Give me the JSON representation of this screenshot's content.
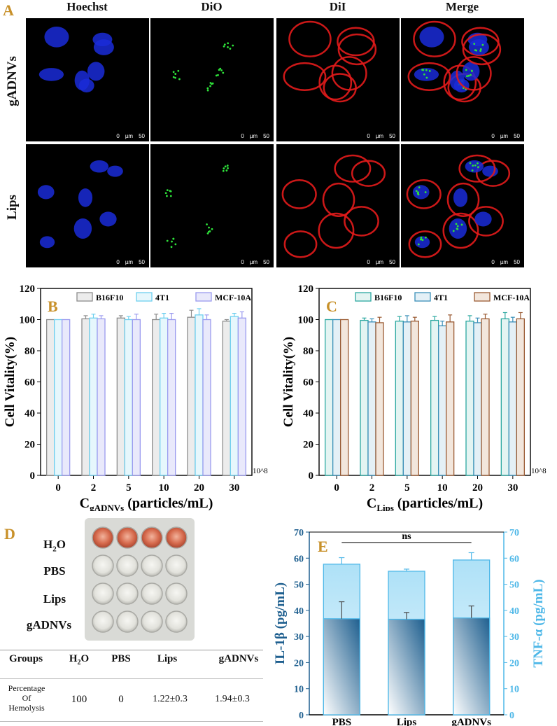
{
  "panel_a": {
    "letter": "A",
    "columns": [
      "Hoechst",
      "DiO",
      "DiI",
      "Merge"
    ],
    "rows": [
      "gADNVs",
      "Lips"
    ],
    "scale_bar": {
      "zero": "0",
      "unit": "µm",
      "length": "50"
    }
  },
  "chart_data": [
    {
      "panel": "B",
      "type": "bar",
      "categories": [
        "0",
        "2",
        "5",
        "10",
        "20",
        "30"
      ],
      "series": [
        {
          "name": "B16F10",
          "values": [
            100,
            100.5,
            101,
            100,
            101.5,
            99
          ],
          "errors": [
            0,
            2,
            1.5,
            3.5,
            4.5,
            1
          ]
        },
        {
          "name": "4T1",
          "values": [
            100,
            101,
            100,
            101,
            103,
            102
          ],
          "errors": [
            0,
            2.5,
            2,
            3,
            4,
            2
          ]
        },
        {
          "name": "MCF-10A",
          "values": [
            100,
            100.5,
            100,
            100,
            100,
            101
          ],
          "errors": [
            0,
            2,
            3.5,
            4,
            3,
            4
          ]
        }
      ],
      "xlabel_main": "C",
      "xlabel_sub": "gADNVs",
      "xlabel_tail": " (particles/mL)",
      "x_multiplier": "10^8",
      "ylabel": "Cell Vitality(%)",
      "ylim": [
        0,
        120
      ],
      "yticks": [
        0,
        20,
        40,
        60,
        80,
        100,
        120
      ],
      "colors": [
        "#8c8c8c",
        "#6fd0ef",
        "#9b9bef"
      ],
      "fills": [
        "#ececec",
        "#e6f7fc",
        "#e9e9fb"
      ]
    },
    {
      "panel": "C",
      "type": "bar",
      "categories": [
        "0",
        "2",
        "5",
        "10",
        "20",
        "30"
      ],
      "series": [
        {
          "name": "B16F10",
          "values": [
            100,
            99.5,
            99,
            99.5,
            99,
            100.5
          ],
          "errors": [
            0,
            1.5,
            3,
            2.5,
            3.5,
            4
          ]
        },
        {
          "name": "4T1",
          "values": [
            100,
            98.5,
            98.5,
            96,
            98,
            98.5
          ],
          "errors": [
            0,
            2,
            4,
            3,
            3,
            3
          ]
        },
        {
          "name": "MCF-10A",
          "values": [
            100,
            98,
            99,
            98.5,
            100.5,
            100.5
          ],
          "errors": [
            0,
            3.5,
            2.5,
            4.5,
            3,
            4
          ]
        }
      ],
      "xlabel_main": "C",
      "xlabel_sub": "Lips",
      "xlabel_tail": " (particles/mL)",
      "x_multiplier": "10^8",
      "ylabel": "Cell Vitality(%)",
      "ylim": [
        0,
        120
      ],
      "yticks": [
        0,
        20,
        40,
        60,
        80,
        100,
        120
      ],
      "colors": [
        "#2ba8a0",
        "#3a8fb8",
        "#9a5a32"
      ],
      "fills": [
        "#e3f4f2",
        "#e4f0f6",
        "#f2e6dc"
      ]
    },
    {
      "panel": "E",
      "type": "bar",
      "categories": [
        "PBS",
        "Lips",
        "gADNVs"
      ],
      "series": [
        {
          "name": "TNF-α",
          "values": [
            57.7,
            55,
            59.3
          ],
          "errors": [
            2.5,
            0.8,
            2.8
          ]
        },
        {
          "name": "IL-1β",
          "values": [
            36.8,
            36.6,
            37.1
          ],
          "errors": [
            6.5,
            2.6,
            4.6
          ]
        }
      ],
      "ylabel_left": "IL-1β (pg/mL)",
      "ylabel_right": "TNF-α (pg/mL)",
      "ylim": [
        0,
        70
      ],
      "yticks": [
        0,
        10,
        20,
        30,
        40,
        50,
        60,
        70
      ],
      "significance": "ns",
      "colors": [
        "#4fb8e8",
        "#1e5f8f"
      ]
    }
  ],
  "panel_d": {
    "letter": "D",
    "well_rows": [
      "H2O",
      "PBS",
      "Lips",
      "gADNVs"
    ],
    "table_headers": [
      "Groups",
      "H2O",
      "PBS",
      "Lips",
      "gADNVs"
    ],
    "row_label_lines": [
      "Percentage",
      "Of",
      "Hemolysis"
    ],
    "row_values": [
      "100",
      "0",
      "1.22±0.3",
      "1.94±0.3"
    ]
  }
}
